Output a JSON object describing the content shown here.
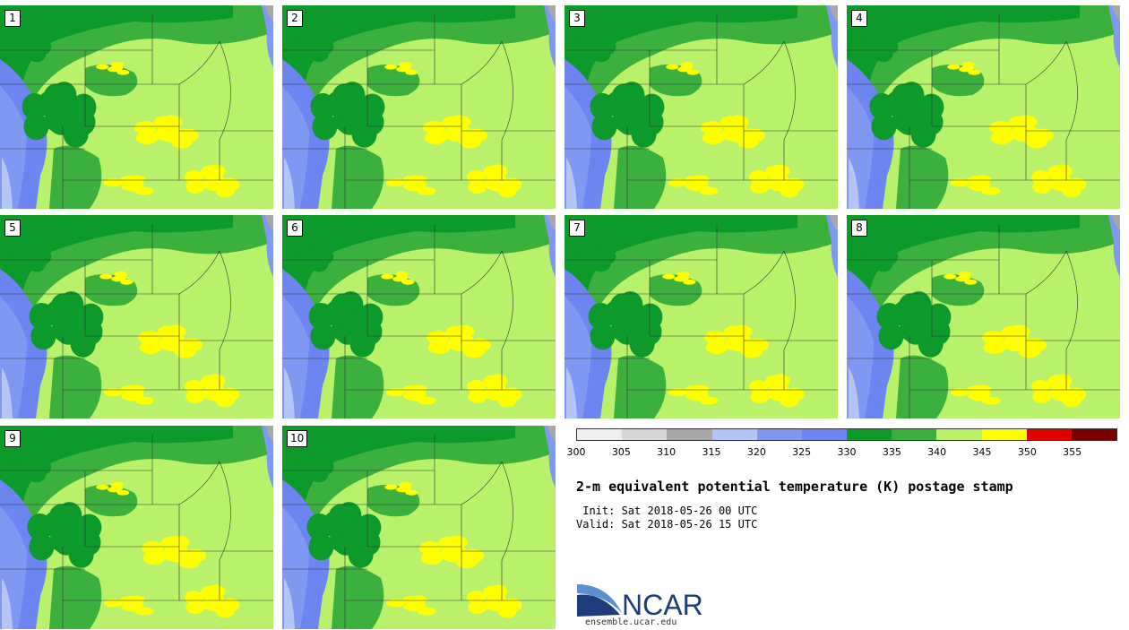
{
  "panels": [
    "1",
    "2",
    "3",
    "4",
    "5",
    "6",
    "7",
    "8",
    "9",
    "10"
  ],
  "colorbar": {
    "colors": [
      "#eeeeee",
      "#d6d6d6",
      "#a8a8a8",
      "#b4c6f8",
      "#8098f2",
      "#6e84f0",
      "#0c9a2a",
      "#3cb03c",
      "#b9f26a",
      "#ffff00",
      "#e00000",
      "#7a0000"
    ],
    "ticks": [
      "300",
      "305",
      "310",
      "315",
      "320",
      "325",
      "330",
      "335",
      "340",
      "345",
      "350",
      "355"
    ]
  },
  "title": "2-m equivalent potential temperature (K) postage stamp",
  "init": " Init: Sat 2018-05-26 00 UTC",
  "valid": "Valid: Sat 2018-05-26 15 UTC",
  "logo": {
    "text": "NCAR",
    "site": "ensemble.ucar.edu",
    "colors": {
      "arc_dark": "#1d3d7a",
      "arc_light": "#5b8fd0",
      "text": "#1d3d7a"
    }
  }
}
